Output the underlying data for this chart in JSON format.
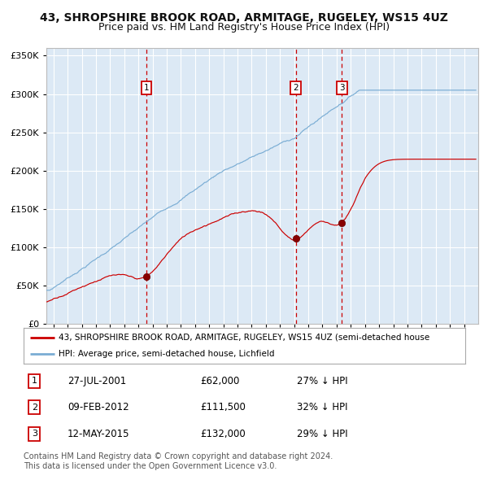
{
  "title": "43, SHROPSHIRE BROOK ROAD, ARMITAGE, RUGELEY, WS15 4UZ",
  "subtitle": "Price paid vs. HM Land Registry's House Price Index (HPI)",
  "legend_line1": "43, SHROPSHIRE BROOK ROAD, ARMITAGE, RUGELEY, WS15 4UZ (semi-detached house",
  "legend_line2": "HPI: Average price, semi-detached house, Lichfield",
  "footer1": "Contains HM Land Registry data © Crown copyright and database right 2024.",
  "footer2": "This data is licensed under the Open Government Licence v3.0.",
  "sale_events": [
    {
      "num": 1,
      "date": "27-JUL-2001",
      "price": 62000,
      "price_str": "£62,000",
      "pct": "27%",
      "dir": "↓",
      "x_year": 2001.57
    },
    {
      "num": 2,
      "date": "09-FEB-2012",
      "price": 111500,
      "price_str": "£111,500",
      "pct": "32%",
      "dir": "↓",
      "x_year": 2012.11
    },
    {
      "num": 3,
      "date": "12-MAY-2015",
      "price": 132000,
      "price_str": "£132,000",
      "pct": "29%",
      "dir": "↓",
      "x_year": 2015.37
    }
  ],
  "vline_color": "#cc0000",
  "hpi_color": "#7aadd4",
  "price_color": "#cc0000",
  "plot_bg_color": "#dce9f5",
  "grid_color": "#ffffff",
  "fig_bg_color": "#ffffff",
  "ylim": [
    0,
    360000
  ],
  "yticks": [
    0,
    50000,
    100000,
    150000,
    200000,
    250000,
    300000,
    350000
  ],
  "xmin": 1994.5,
  "xmax": 2025.0,
  "title_fontsize": 10.5,
  "subtitle_fontsize": 9.5
}
